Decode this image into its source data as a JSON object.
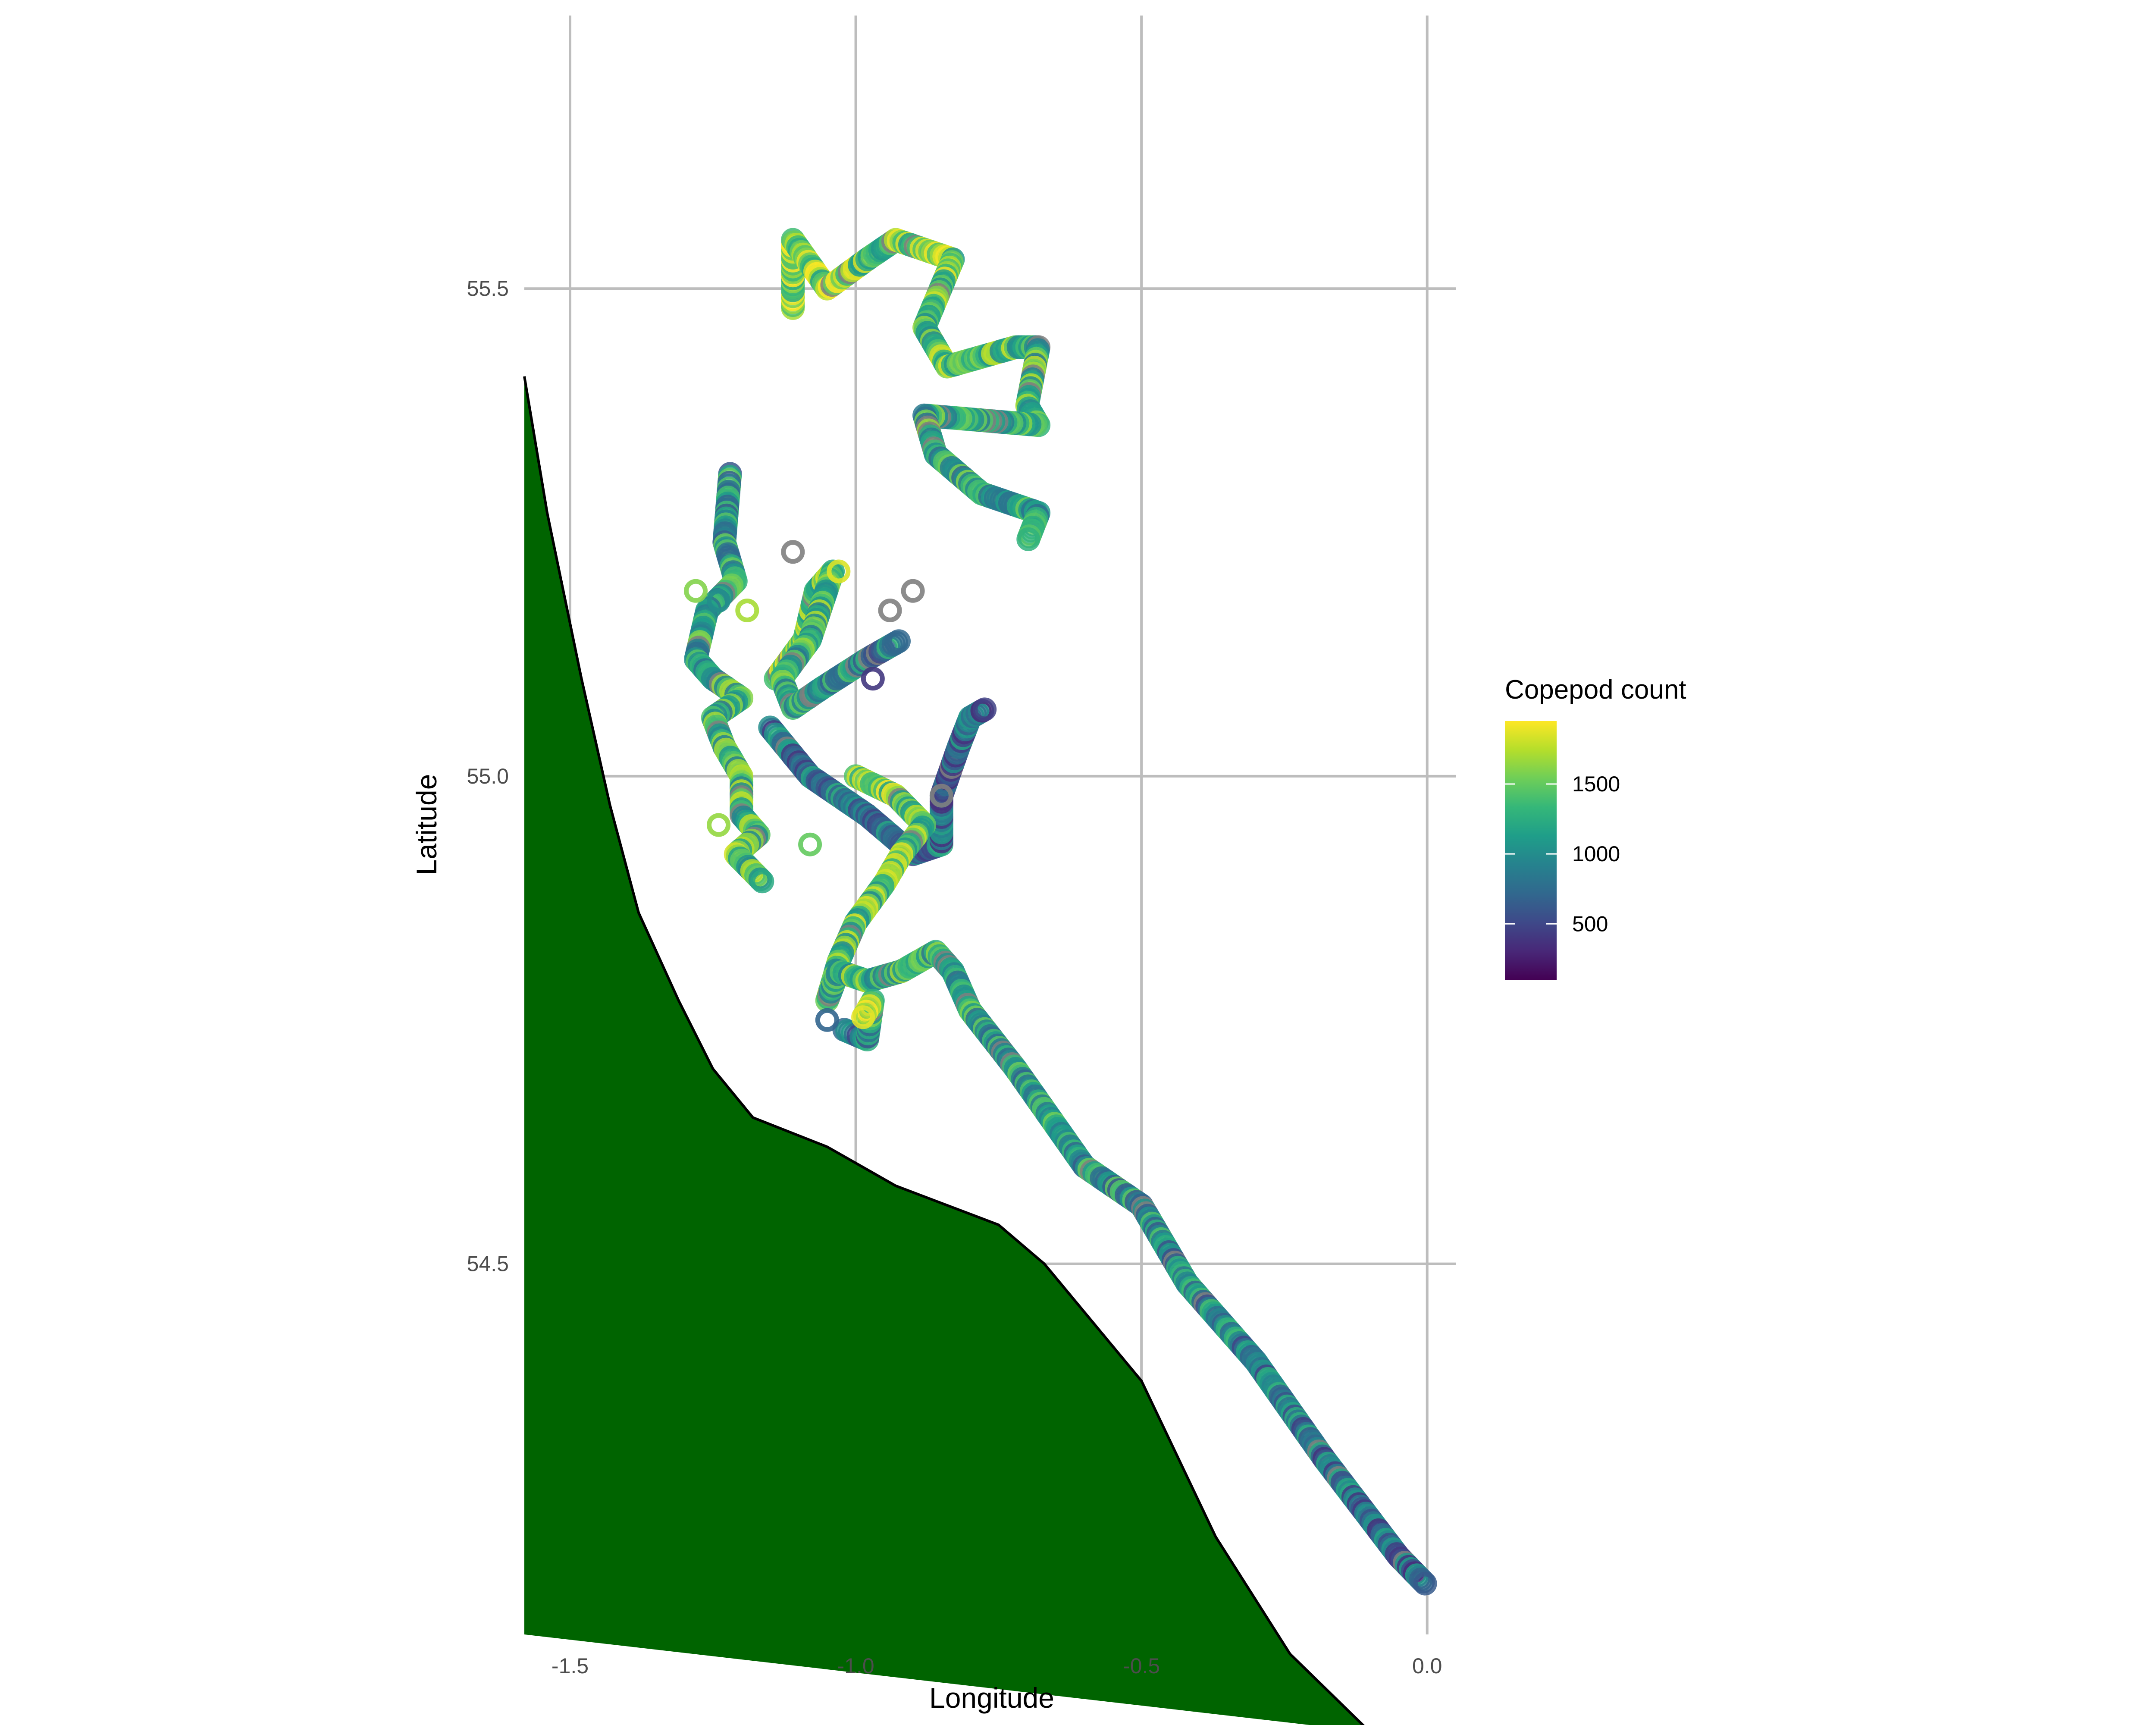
{
  "chart_data": {
    "type": "scatter",
    "title": "",
    "xlabel": "Longitude",
    "ylabel": "Latitude",
    "xlim": [
      -1.58,
      0.05
    ],
    "ylim": [
      54.12,
      55.78
    ],
    "x_ticks": [
      -1.5,
      -1.0,
      -0.5,
      0.0
    ],
    "x_tick_labels": [
      "-1.5",
      "-1.0",
      "-0.5",
      "0.0"
    ],
    "y_ticks": [
      54.5,
      55.0,
      55.5
    ],
    "y_tick_labels": [
      "54.5",
      "55.0",
      "55.5"
    ],
    "grid": true,
    "legend": {
      "title": "Copepod count",
      "position": "right",
      "color_scale": "viridis",
      "range": [
        100,
        1950
      ],
      "breaks": [
        500,
        1000,
        1500
      ],
      "break_labels": [
        "500",
        "1000",
        "1500"
      ],
      "na_color": "#7f7f7f"
    },
    "land": {
      "fill": "#006400",
      "outline": "#000000",
      "coastline": [
        [
          -1.58,
          55.41
        ],
        [
          -1.54,
          55.27
        ],
        [
          -1.48,
          55.1
        ],
        [
          -1.43,
          54.97
        ],
        [
          -1.38,
          54.86
        ],
        [
          -1.31,
          54.77
        ],
        [
          -1.25,
          54.7
        ],
        [
          -1.18,
          54.65
        ],
        [
          -1.05,
          54.62
        ],
        [
          -0.93,
          54.58
        ],
        [
          -0.75,
          54.54
        ],
        [
          -0.67,
          54.5
        ],
        [
          -0.5,
          54.38
        ],
        [
          -0.37,
          54.22
        ],
        [
          -0.24,
          54.1
        ],
        [
          -0.1,
          54.02
        ]
      ]
    },
    "tracks": [
      {
        "start_value": 1650,
        "end_value": 1100,
        "points": [
          [
            -1.11,
            55.48
          ],
          [
            -1.11,
            55.55
          ],
          [
            -1.05,
            55.5
          ],
          [
            -0.98,
            55.53
          ],
          [
            -0.93,
            55.55
          ],
          [
            -0.83,
            55.53
          ],
          [
            -0.88,
            55.46
          ],
          [
            -0.84,
            55.42
          ],
          [
            -0.72,
            55.44
          ],
          [
            -0.68,
            55.44
          ],
          [
            -0.7,
            55.38
          ],
          [
            -0.68,
            55.36
          ],
          [
            -0.88,
            55.37
          ],
          [
            -0.86,
            55.33
          ],
          [
            -0.78,
            55.29
          ],
          [
            -0.68,
            55.27
          ],
          [
            -0.7,
            55.24
          ]
        ]
      },
      {
        "start_value": 1050,
        "end_value": 1450,
        "points": [
          [
            -1.22,
            55.31
          ],
          [
            -1.23,
            55.24
          ],
          [
            -1.21,
            55.2
          ],
          [
            -1.26,
            55.17
          ],
          [
            -1.28,
            55.12
          ],
          [
            -1.25,
            55.1
          ],
          [
            -1.2,
            55.08
          ],
          [
            -1.25,
            55.06
          ],
          [
            -1.23,
            55.03
          ],
          [
            -1.2,
            55.0
          ],
          [
            -1.2,
            54.96
          ],
          [
            -1.17,
            54.94
          ],
          [
            -1.21,
            54.92
          ],
          [
            -1.16,
            54.89
          ]
        ]
      },
      {
        "start_value": 1700,
        "end_value": 900,
        "points": [
          [
            -1.14,
            55.1
          ],
          [
            -1.09,
            55.14
          ],
          [
            -1.07,
            55.19
          ],
          [
            -1.04,
            55.21
          ],
          [
            -1.08,
            55.14
          ],
          [
            -1.13,
            55.1
          ],
          [
            -1.11,
            55.07
          ],
          [
            -1.06,
            55.09
          ],
          [
            -0.98,
            55.12
          ],
          [
            -0.92,
            55.14
          ]
        ]
      },
      {
        "start_value": 850,
        "end_value": 750,
        "points": [
          [
            -1.15,
            55.05
          ],
          [
            -1.08,
            55.0
          ],
          [
            -0.98,
            54.96
          ],
          [
            -0.9,
            54.92
          ],
          [
            -0.85,
            54.93
          ],
          [
            -0.85,
            54.98
          ],
          [
            -0.82,
            55.03
          ],
          [
            -0.8,
            55.06
          ],
          [
            -0.77,
            55.07
          ]
        ]
      },
      {
        "start_value": 1550,
        "end_value": 700,
        "points": [
          [
            -1.0,
            55.0
          ],
          [
            -0.93,
            54.98
          ],
          [
            -0.88,
            54.95
          ],
          [
            -0.92,
            54.92
          ],
          [
            -0.95,
            54.89
          ],
          [
            -1.0,
            54.85
          ],
          [
            -1.03,
            54.81
          ],
          [
            -1.05,
            54.77
          ],
          [
            -1.03,
            54.8
          ],
          [
            -0.98,
            54.79
          ],
          [
            -0.92,
            54.8
          ],
          [
            -0.86,
            54.82
          ],
          [
            -0.83,
            54.8
          ],
          [
            -0.8,
            54.76
          ],
          [
            -0.72,
            54.7
          ],
          [
            -0.6,
            54.6
          ],
          [
            -0.5,
            54.56
          ],
          [
            -0.42,
            54.48
          ],
          [
            -0.3,
            54.4
          ],
          [
            -0.18,
            54.3
          ],
          [
            -0.05,
            54.2
          ],
          [
            0.0,
            54.17
          ]
        ]
      },
      {
        "start_value": 600,
        "end_value": 1750,
        "points": [
          [
            -1.02,
            54.74
          ],
          [
            -0.98,
            54.73
          ],
          [
            -0.97,
            54.77
          ],
          [
            -0.99,
            54.75
          ]
        ]
      }
    ],
    "isolated_points": [
      {
        "x": -1.11,
        "y": 55.23,
        "value": null
      },
      {
        "x": -1.03,
        "y": 55.21,
        "value": 1850
      },
      {
        "x": -0.94,
        "y": 55.17,
        "value": null
      },
      {
        "x": -0.9,
        "y": 55.19,
        "value": null
      },
      {
        "x": -1.05,
        "y": 54.75,
        "value": 700
      },
      {
        "x": -1.28,
        "y": 55.19,
        "value": 1600
      },
      {
        "x": -1.24,
        "y": 55.18,
        "value": 1000
      },
      {
        "x": -1.19,
        "y": 55.17,
        "value": 1700
      },
      {
        "x": -0.85,
        "y": 54.98,
        "value": null
      },
      {
        "x": -0.97,
        "y": 55.1,
        "value": 400
      },
      {
        "x": -1.08,
        "y": 54.93,
        "value": 1500
      },
      {
        "x": -1.24,
        "y": 54.95,
        "value": 1650
      }
    ]
  }
}
